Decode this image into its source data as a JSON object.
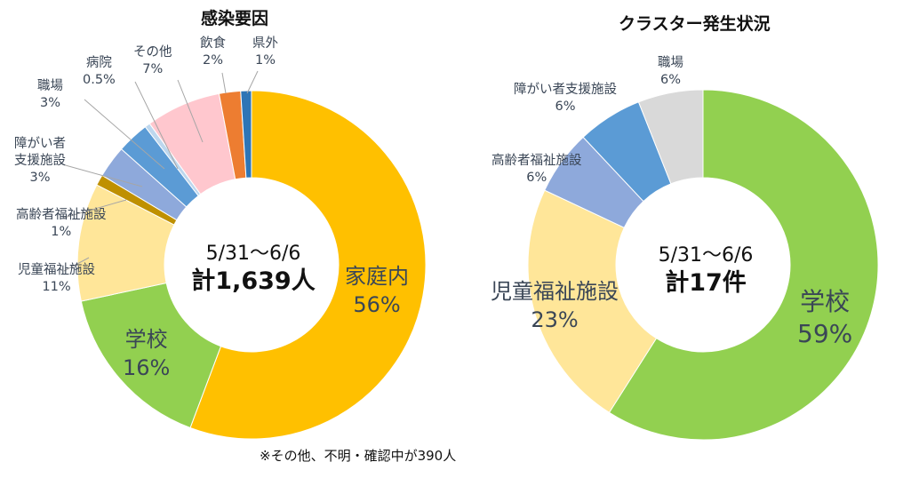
{
  "chart_data": [
    {
      "type": "pie",
      "variant": "donut",
      "title": "感染要因",
      "center_date": "5/31〜6/6",
      "center_total": "計1,639人",
      "slices": [
        {
          "name": "家庭内",
          "value": 56,
          "label": "56%",
          "color": "#FFC000"
        },
        {
          "name": "学校",
          "value": 16,
          "label": "16%",
          "color": "#92D050"
        },
        {
          "name": "児童福祉施設",
          "value": 11,
          "label": "11%",
          "color": "#FFE699"
        },
        {
          "name": "高齢者福祉施設",
          "value": 1,
          "label": "1%",
          "color": "#BF9000"
        },
        {
          "name": "障がい者支援施設",
          "value": 3,
          "label": "3%",
          "color": "#8EA9DB"
        },
        {
          "name": "職場",
          "value": 3,
          "label": "3%",
          "color": "#5B9BD5"
        },
        {
          "name": "病院",
          "value": 0.5,
          "label": "0.5%",
          "color": "#BDD7EE"
        },
        {
          "name": "その他",
          "value": 7,
          "label": "7%",
          "color": "#FFC7CE"
        },
        {
          "name": "飲食",
          "value": 2,
          "label": "2%",
          "color": "#ED7D31"
        },
        {
          "name": "県外",
          "value": 1,
          "label": "1%",
          "color": "#2E75B6"
        }
      ],
      "label_names": {
        "katei": "家庭内",
        "gakko": "学校",
        "jido_line1": "児童福祉施設",
        "koreisha": "高齢者福祉施設",
        "shogai_line1": "障がい者",
        "shogai_line2": "支援施設",
        "shokuba": "職場",
        "byoin": "病院",
        "sonota": "その他",
        "inshoku": "飲食",
        "kengai": "県外"
      },
      "footnote": "※その他、不明・確認中が390人"
    },
    {
      "type": "pie",
      "variant": "donut",
      "title": "クラスター発生状況",
      "center_date": "5/31〜6/6",
      "center_total": "計17件",
      "slices": [
        {
          "name": "学校",
          "value": 59,
          "label": "59%",
          "color": "#92D050"
        },
        {
          "name": "児童福祉施設",
          "value": 23,
          "label": "23%",
          "color": "#FFE699"
        },
        {
          "name": "高齢者福祉施設",
          "value": 6,
          "label": "6%",
          "color": "#8EA9DB"
        },
        {
          "name": "障がい者支援施設",
          "value": 6,
          "label": "6%",
          "color": "#5B9BD5"
        },
        {
          "name": "職場",
          "value": 6,
          "label": "6%",
          "color": "#D9D9D9"
        }
      ]
    }
  ]
}
